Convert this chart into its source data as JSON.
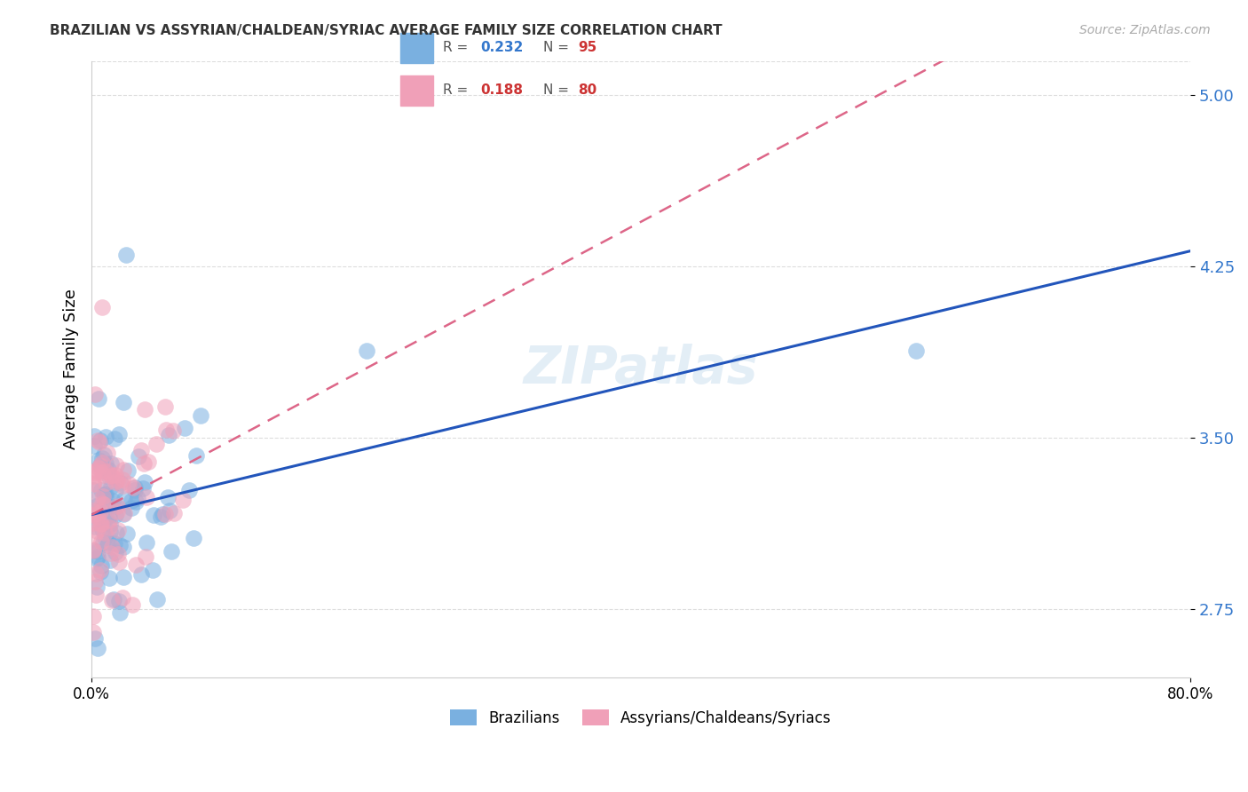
{
  "title": "BRAZILIAN VS ASSYRIAN/CHALDEAN/SYRIAC AVERAGE FAMILY SIZE CORRELATION CHART",
  "source": "Source: ZipAtlas.com",
  "ylabel": "Average Family Size",
  "yticks": [
    2.75,
    3.5,
    4.25,
    5.0
  ],
  "xlim": [
    0.0,
    0.8
  ],
  "ylim": [
    2.45,
    5.15
  ],
  "legend_blue_R": "0.232",
  "legend_blue_N": "95",
  "legend_pink_R": "0.188",
  "legend_pink_N": "80",
  "blue_color": "#7ab0e0",
  "pink_color": "#f0a0b8",
  "blue_line_color": "#2255bb",
  "pink_line_color": "#dd6688",
  "watermark": "ZIPatlas"
}
